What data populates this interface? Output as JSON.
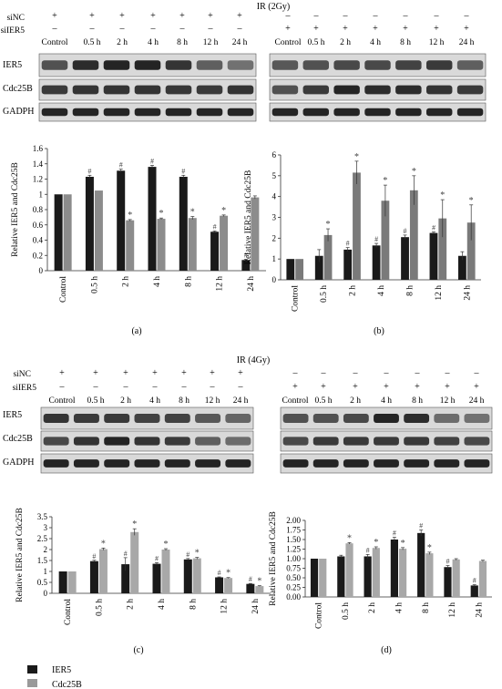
{
  "top": {
    "ir_title": "IR (2Gy)",
    "row_labels": [
      "siNC",
      "siIER5"
    ],
    "left_signs": {
      "sinc": [
        "+",
        "+",
        "+",
        "+",
        "+",
        "+",
        "+"
      ],
      "siier5": [
        "–",
        "–",
        "–",
        "–",
        "–",
        "–",
        "–"
      ]
    },
    "right_signs": {
      "sinc": [
        "–",
        "–",
        "–",
        "–",
        "–",
        "–",
        "–"
      ],
      "siier5": [
        "+",
        "+",
        "+",
        "+",
        "+",
        "+",
        "+"
      ]
    },
    "timepoints": [
      "Control",
      "0.5 h",
      "2 h",
      "4 h",
      "8 h",
      "12 h",
      "24 h"
    ],
    "blot_labels": [
      "IER5",
      "Cdc25B",
      "GADPH"
    ]
  },
  "bottom": {
    "ir_title": "IR (4Gy)",
    "row_labels": [
      "siNC",
      "siIER5"
    ],
    "left_signs": {
      "sinc": [
        "+",
        "+",
        "+",
        "+",
        "+",
        "+",
        "+"
      ],
      "siier5": [
        "–",
        "–",
        "–",
        "–",
        "–",
        "–",
        "–"
      ]
    },
    "right_signs": {
      "sinc": [
        "–",
        "–",
        "–",
        "–",
        "–",
        "–",
        "–"
      ],
      "siier5": [
        "+",
        "+",
        "+",
        "+",
        "+",
        "+",
        "+"
      ]
    },
    "timepoints": [
      "Control",
      "0.5 h",
      "2 h",
      "4 h",
      "8 h",
      "12 h",
      "24 h"
    ],
    "blot_labels": [
      "IER5",
      "Cdc25B",
      "GADPH"
    ]
  },
  "panel_labels": [
    "(a)",
    "(b)",
    "(c)",
    "(d)"
  ],
  "legend": [
    {
      "name": "IER5",
      "color": "#1a1a1a"
    },
    {
      "name": "Cdc25B",
      "color": "#9a9a9a"
    }
  ],
  "colors": {
    "ier5": "#1a1a1a",
    "cdc25b_a": "#8c8c8c",
    "cdc25b_b": "#7a7a7a",
    "cdc25b_light": "#a8a8a8"
  },
  "chart_data": [
    {
      "id": "a",
      "type": "bar",
      "ylabel": "Relative IER5 and Cdc25B",
      "ylim": [
        0,
        1.6
      ],
      "yticks": [
        "0",
        "0.2",
        "0.4",
        "0.6",
        "0.8",
        "1",
        "1.2",
        "1.4",
        "1.6"
      ],
      "categories": [
        "Control",
        "0.5 h",
        "2 h",
        "4 h",
        "8 h",
        "12 h",
        "24 h"
      ],
      "series": [
        {
          "name": "IER5",
          "values": [
            1.0,
            1.23,
            1.31,
            1.36,
            1.23,
            0.51,
            0.14
          ],
          "errors": [
            0,
            0.02,
            0.02,
            0.02,
            0.02,
            0.01,
            0.01
          ],
          "marks": [
            "",
            "#",
            "#",
            "#",
            "#",
            "#",
            "#"
          ]
        },
        {
          "name": "Cdc25B",
          "values": [
            1.0,
            1.05,
            0.66,
            0.68,
            0.69,
            0.72,
            0.96
          ],
          "errors": [
            0,
            0,
            0.01,
            0.01,
            0.02,
            0.01,
            0.02
          ],
          "marks": [
            "",
            "",
            "*",
            "*",
            "*",
            "*",
            ""
          ]
        }
      ]
    },
    {
      "id": "b",
      "type": "bar",
      "ylabel": "Relative IER5 and Cdc25B",
      "ylim": [
        0,
        6
      ],
      "yticks": [
        "0",
        "1",
        "2",
        "3",
        "4",
        "5",
        "6"
      ],
      "categories": [
        "Control",
        "0.5 h",
        "2 h",
        "4 h",
        "8 h",
        "12 h",
        "24 h"
      ],
      "series": [
        {
          "name": "IER5",
          "values": [
            1.0,
            1.15,
            1.45,
            1.65,
            2.05,
            2.25,
            1.15
          ],
          "errors": [
            0,
            0.3,
            0.1,
            0.1,
            0.1,
            0.05,
            0.2
          ],
          "marks": [
            "",
            "",
            "#",
            "#",
            "#",
            "#",
            ""
          ]
        },
        {
          "name": "Cdc25B",
          "values": [
            1.0,
            2.15,
            5.15,
            3.8,
            4.3,
            2.95,
            2.75
          ],
          "errors": [
            0,
            0.3,
            0.55,
            0.75,
            0.7,
            0.9,
            0.85
          ],
          "marks": [
            "",
            "*",
            "*",
            "*",
            "*",
            "*",
            "*"
          ]
        }
      ]
    },
    {
      "id": "c",
      "type": "bar",
      "ylabel": "Relative IER5 and Cdc25B",
      "ylim": [
        0,
        3.5
      ],
      "yticks": [
        "0",
        "0.5",
        "1",
        "1.5",
        "2",
        "2.5",
        "3",
        "3.5"
      ],
      "categories": [
        "Control",
        "0.5 h",
        "2 h",
        "4 h",
        "8 h",
        "12 h",
        "24 h"
      ],
      "series": [
        {
          "name": "IER5",
          "values": [
            1.0,
            1.47,
            1.33,
            1.35,
            1.55,
            0.73,
            0.43
          ],
          "errors": [
            0,
            0.04,
            0.3,
            0.05,
            0.04,
            0.02,
            0.02
          ],
          "marks": [
            "",
            "#",
            "#",
            "#",
            "#",
            "#",
            "#"
          ]
        },
        {
          "name": "Cdc25B",
          "values": [
            1.0,
            2.02,
            2.8,
            2.0,
            1.6,
            0.7,
            0.33
          ],
          "errors": [
            0,
            0.05,
            0.15,
            0.04,
            0.04,
            0.02,
            0.02
          ],
          "marks": [
            "",
            "*",
            "*",
            "*",
            "*",
            "*",
            "*"
          ]
        }
      ]
    },
    {
      "id": "d",
      "type": "bar",
      "ylabel": "Relative IER5 and Cdc25B",
      "ylim": [
        0,
        2.0
      ],
      "yticks": [
        "0.00",
        "0.25",
        "0.50",
        "0.75",
        "1.00",
        "1.25",
        "1.50",
        "1.75",
        "2.00"
      ],
      "categories": [
        "Control",
        "0.5 h",
        "2 h",
        "4 h",
        "8 h",
        "12 h",
        "24 h"
      ],
      "series": [
        {
          "name": "IER5",
          "values": [
            1.0,
            1.06,
            1.06,
            1.5,
            1.67,
            0.78,
            0.3
          ],
          "errors": [
            0,
            0.03,
            0.05,
            0.06,
            0.08,
            0.04,
            0.02
          ],
          "marks": [
            "",
            "",
            "#",
            "#",
            "#",
            "#",
            "#"
          ]
        },
        {
          "name": "Cdc25B",
          "values": [
            1.0,
            1.4,
            1.28,
            1.26,
            1.14,
            0.98,
            0.94
          ],
          "errors": [
            0,
            0.02,
            0.03,
            0.03,
            0.03,
            0.02,
            0.02
          ],
          "marks": [
            "",
            "*",
            "*",
            "*",
            "*",
            "",
            ""
          ]
        }
      ]
    }
  ]
}
